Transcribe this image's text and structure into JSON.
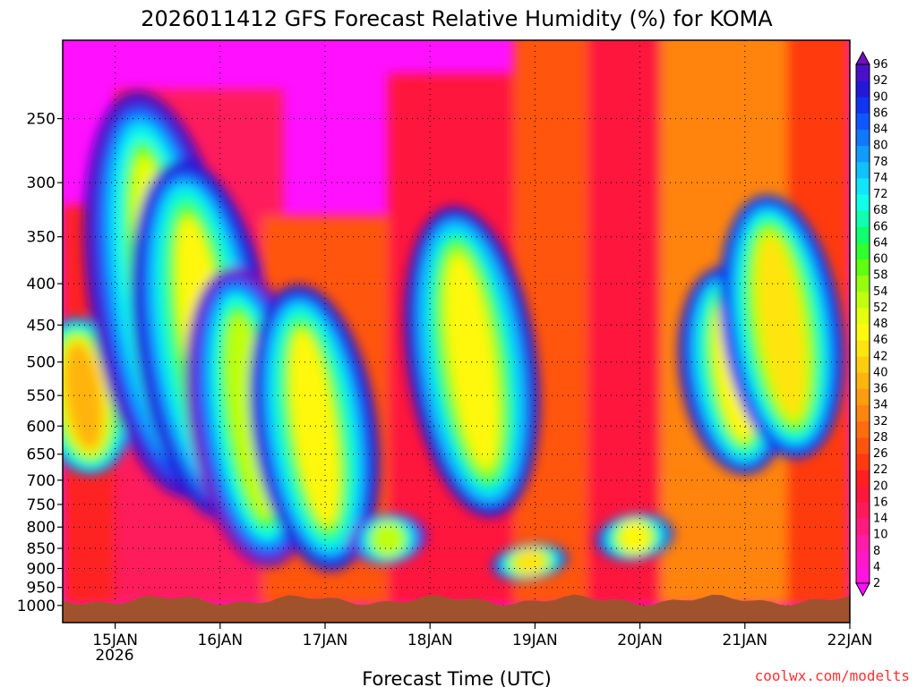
{
  "chart_data": {
    "type": "heatmap",
    "title": "2026011412 GFS Forecast Relative Humidity (%) for KOMA",
    "xlabel": "Forecast Time (UTC)",
    "ylabel": "",
    "y_axis": {
      "scale": "pressure (hPa), log",
      "range": [
        200,
        1050
      ],
      "ticks": [
        "250",
        "300",
        "350",
        "400",
        "450",
        "500",
        "550",
        "600",
        "650",
        "700",
        "750",
        "800",
        "850",
        "900",
        "950",
        "1000"
      ],
      "tick_values": [
        250,
        300,
        350,
        400,
        450,
        500,
        550,
        600,
        650,
        700,
        750,
        800,
        850,
        900,
        950,
        1000
      ]
    },
    "x_axis": {
      "range_days": [
        0.5,
        8.0
      ],
      "ticks": [
        "15JAN",
        "16JAN",
        "17JAN",
        "18JAN",
        "19JAN",
        "20JAN",
        "21JAN",
        "22JAN"
      ],
      "tick_days": [
        1,
        2,
        3,
        4,
        5,
        6,
        7,
        8
      ],
      "year_label": "2026"
    },
    "colorbar": {
      "levels": [
        "2",
        "4",
        "8",
        "10",
        "14",
        "16",
        "20",
        "22",
        "26",
        "28",
        "32",
        "34",
        "36",
        "40",
        "42",
        "46",
        "48",
        "52",
        "54",
        "58",
        "60",
        "64",
        "66",
        "68",
        "72",
        "74",
        "78",
        "80",
        "84",
        "86",
        "90",
        "92",
        "96"
      ],
      "colors": [
        "#ff10ff",
        "#ff14e0",
        "#ff18c8",
        "#ff1ca8",
        "#ff1a80",
        "#ff1a5c",
        "#ff183c",
        "#ff2020",
        "#ff3a10",
        "#ff5410",
        "#ff6c10",
        "#ff8410",
        "#ff9c10",
        "#ffb410",
        "#ffcc10",
        "#ffe410",
        "#fff810",
        "#e4ff10",
        "#c0ff10",
        "#96ff10",
        "#60ff10",
        "#30ff30",
        "#10ff70",
        "#10ffb0",
        "#10ffe8",
        "#10e4ff",
        "#10c0ff",
        "#109cff",
        "#1078ff",
        "#1056ff",
        "#1034f0",
        "#2418d8",
        "#4a10c8",
        "#7010c0"
      ]
    },
    "plume_features": [
      {
        "time_days": 0.7,
        "pressure_top": 440,
        "pressure_bottom": 690,
        "peak_rh": 78
      },
      {
        "time_days": 1.45,
        "pressure_top": 230,
        "pressure_bottom": 740,
        "peak_rh": 90
      },
      {
        "time_days": 1.85,
        "pressure_top": 280,
        "pressure_bottom": 790,
        "peak_rh": 88
      },
      {
        "time_days": 2.3,
        "pressure_top": 380,
        "pressure_bottom": 900,
        "peak_rh": 92
      },
      {
        "time_days": 2.9,
        "pressure_top": 400,
        "pressure_bottom": 910,
        "peak_rh": 88
      },
      {
        "time_days": 3.6,
        "pressure_top": 770,
        "pressure_bottom": 890,
        "peak_rh": 92
      },
      {
        "time_days": 4.4,
        "pressure_top": 320,
        "pressure_bottom": 780,
        "peak_rh": 86
      },
      {
        "time_days": 4.95,
        "pressure_top": 840,
        "pressure_bottom": 930,
        "peak_rh": 84
      },
      {
        "time_days": 5.95,
        "pressure_top": 770,
        "pressure_bottom": 880,
        "peak_rh": 86
      },
      {
        "time_days": 6.9,
        "pressure_top": 380,
        "pressure_bottom": 690,
        "peak_rh": 88
      },
      {
        "time_days": 7.35,
        "pressure_top": 310,
        "pressure_bottom": 660,
        "peak_rh": 84
      }
    ],
    "surface_color": "#a0522d"
  },
  "credit": "coolwx.com/modelts"
}
